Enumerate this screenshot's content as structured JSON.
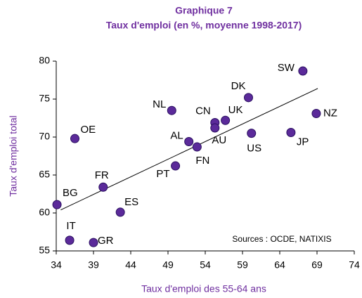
{
  "chart_data": {
    "type": "scatter",
    "title": "Graphique 7",
    "subtitle": "Taux d'emploi (en %, moyenne 1998-2017)",
    "x_label": "Taux d'emploi des 55-64 ans",
    "y_label": "Taux d'emploi total",
    "annotation": "Sources : OCDE, NATIXIS",
    "color": "#5b2a9a",
    "labels": [
      "BG",
      "OE",
      "FR",
      "IT",
      "GR",
      "ES",
      "NL",
      "AL",
      "PT",
      "FN",
      "CN",
      "AU",
      "UK",
      "DK",
      "US",
      "JP",
      "SW",
      "NZ"
    ],
    "x": [
      34.1,
      36.5,
      40.3,
      35.8,
      39.0,
      42.6,
      49.5,
      51.8,
      50.0,
      52.9,
      55.3,
      55.3,
      56.7,
      59.8,
      60.2,
      65.5,
      67.1,
      68.9
    ],
    "values": [
      61.1,
      69.8,
      63.4,
      56.4,
      56.1,
      60.1,
      73.5,
      69.4,
      66.2,
      68.7,
      71.9,
      71.2,
      72.2,
      75.2,
      70.5,
      70.6,
      78.7,
      73.1
    ],
    "trendline": {
      "x": [
        34.6,
        69.1
      ],
      "y": [
        60.4,
        76.4
      ]
    },
    "xlim": [
      34,
      74
    ],
    "xticks": [
      34,
      39,
      44,
      49,
      54,
      59,
      64,
      69,
      74
    ],
    "ylim": [
      55,
      80
    ],
    "yticks": [
      55,
      60,
      65,
      70,
      75,
      80
    ]
  }
}
